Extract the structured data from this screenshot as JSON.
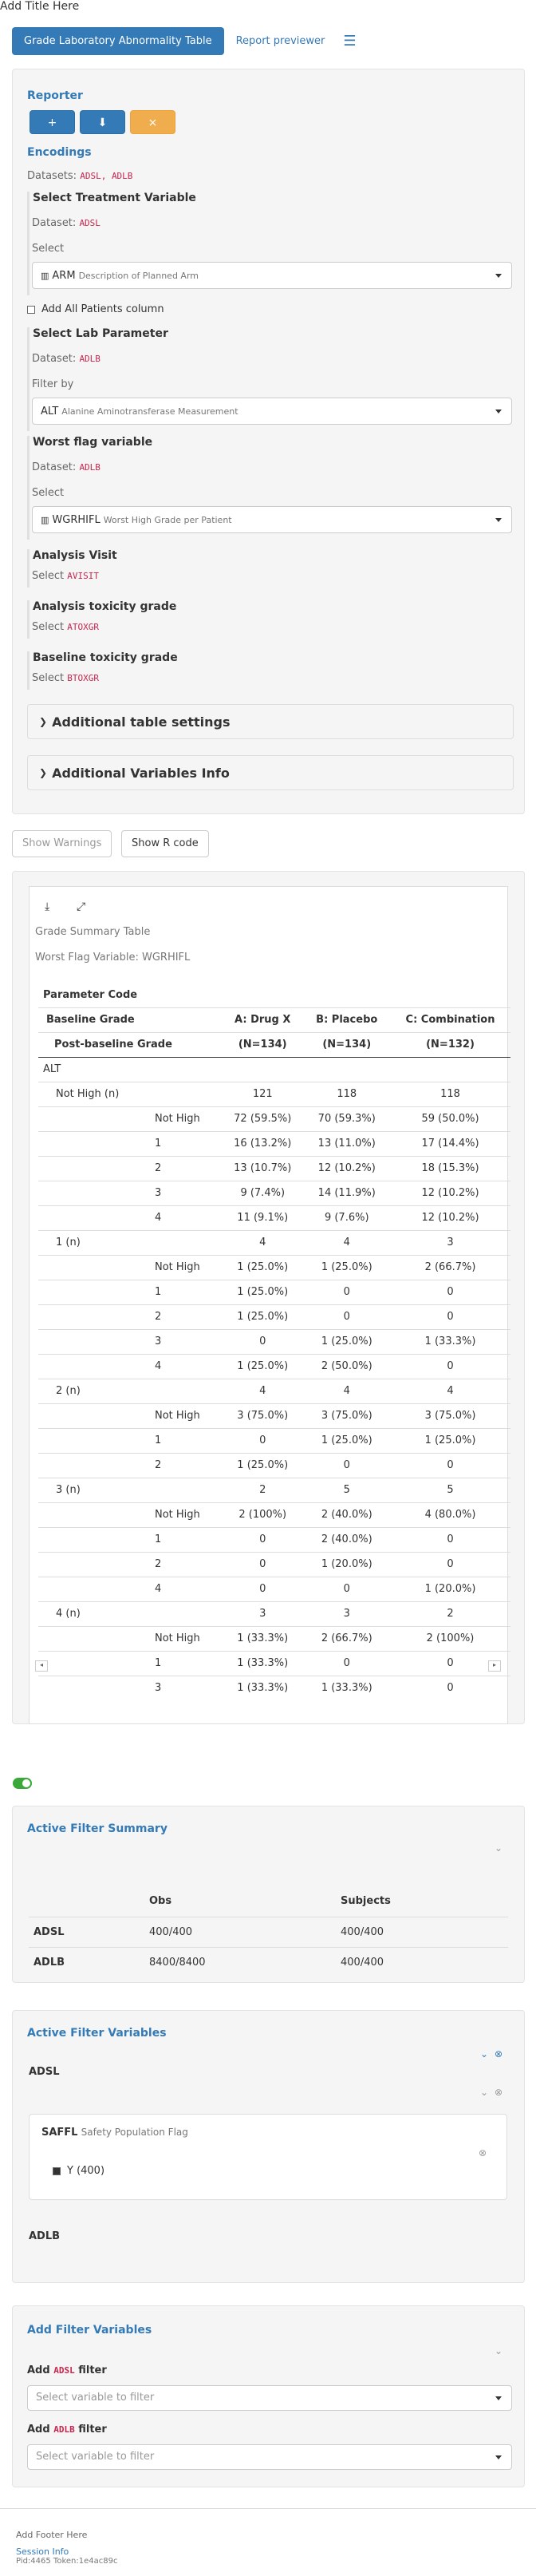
{
  "app": {
    "title": "Add Title Here"
  },
  "nav": {
    "tab_active": "Grade Laboratory Abnormality Table",
    "tab_report": "Report previewer",
    "menu_icon": "hamburger-icon"
  },
  "encodings": {
    "reporter_title": "Reporter",
    "reporter_buttons": [
      "+",
      "⬇",
      "×"
    ],
    "encodings_title": "Encodings",
    "datasets_label": "Datasets:",
    "datasets_value": "ADSL, ADLB",
    "treatment": {
      "title": "Select Treatment Variable",
      "dataset_label": "Dataset:",
      "dataset": "ADSL",
      "select_label": "Select",
      "value": "ARM",
      "desc": "Description of Planned Arm"
    },
    "all_patients_label": "Add All Patients column",
    "lab": {
      "title": "Select Lab Parameter",
      "dataset_label": "Dataset:",
      "dataset": "ADLB",
      "filter_label": "Filter by",
      "value": "ALT",
      "desc": "Alanine Aminotransferase Measurement"
    },
    "worst_flag": {
      "title": "Worst flag variable",
      "dataset_label": "Dataset:",
      "dataset": "ADLB",
      "select_label": "Select",
      "value": "WGRHIFL",
      "desc": "Worst High Grade per Patient"
    },
    "analysis_visit": {
      "title": "Analysis Visit",
      "select_label": "Select",
      "value": "AVISIT"
    },
    "analysis_tox": {
      "title": "Analysis toxicity grade",
      "select_label": "Select",
      "value": "ATOXGR"
    },
    "baseline_tox": {
      "title": "Baseline toxicity grade",
      "select_label": "Select",
      "value": "BTOXGR"
    },
    "additional_settings": "Additional table settings",
    "additional_vars": "Additional Variables Info"
  },
  "actions": {
    "show_warnings": "Show Warnings",
    "show_r_code": "Show R code"
  },
  "output": {
    "title": "Grade Summary Table",
    "subtitle": "Worst Flag Variable: WGRHIFL",
    "header_param": "Parameter Code",
    "header_baseline": "Baseline Grade",
    "header_post": "Post-baseline Grade",
    "col_a": "A: Drug X",
    "col_b": "B: Placebo",
    "col_c": "C: Combination",
    "n_a": "(N=134)",
    "n_b": "(N=134)",
    "n_c": "(N=132)",
    "param": "ALT",
    "rows": [
      {
        "b": "Not High (n)",
        "p": "",
        "a": "121",
        "bb": "118",
        "c": "118",
        "lvl": 1
      },
      {
        "b": "",
        "p": "Not High",
        "a": "72 (59.5%)",
        "bb": "70 (59.3%)",
        "c": "59 (50.0%)",
        "lvl": 2
      },
      {
        "b": "",
        "p": "1",
        "a": "16 (13.2%)",
        "bb": "13 (11.0%)",
        "c": "17 (14.4%)",
        "lvl": 2
      },
      {
        "b": "",
        "p": "2",
        "a": "13 (10.7%)",
        "bb": "12 (10.2%)",
        "c": "18 (15.3%)",
        "lvl": 2
      },
      {
        "b": "",
        "p": "3",
        "a": "9 (7.4%)",
        "bb": "14 (11.9%)",
        "c": "12 (10.2%)",
        "lvl": 2
      },
      {
        "b": "",
        "p": "4",
        "a": "11 (9.1%)",
        "bb": "9 (7.6%)",
        "c": "12 (10.2%)",
        "lvl": 2
      },
      {
        "b": "1 (n)",
        "p": "",
        "a": "4",
        "bb": "4",
        "c": "3",
        "lvl": 1
      },
      {
        "b": "",
        "p": "Not High",
        "a": "1 (25.0%)",
        "bb": "1 (25.0%)",
        "c": "2 (66.7%)",
        "lvl": 2
      },
      {
        "b": "",
        "p": "1",
        "a": "1 (25.0%)",
        "bb": "0",
        "c": "0",
        "lvl": 2
      },
      {
        "b": "",
        "p": "2",
        "a": "1 (25.0%)",
        "bb": "0",
        "c": "0",
        "lvl": 2
      },
      {
        "b": "",
        "p": "3",
        "a": "0",
        "bb": "1 (25.0%)",
        "c": "1 (33.3%)",
        "lvl": 2
      },
      {
        "b": "",
        "p": "4",
        "a": "1 (25.0%)",
        "bb": "2 (50.0%)",
        "c": "0",
        "lvl": 2
      },
      {
        "b": "2 (n)",
        "p": "",
        "a": "4",
        "bb": "4",
        "c": "4",
        "lvl": 1
      },
      {
        "b": "",
        "p": "Not High",
        "a": "3 (75.0%)",
        "bb": "3 (75.0%)",
        "c": "3 (75.0%)",
        "lvl": 2
      },
      {
        "b": "",
        "p": "1",
        "a": "0",
        "bb": "1 (25.0%)",
        "c": "1 (25.0%)",
        "lvl": 2
      },
      {
        "b": "",
        "p": "2",
        "a": "1 (25.0%)",
        "bb": "0",
        "c": "0",
        "lvl": 2
      },
      {
        "b": "3 (n)",
        "p": "",
        "a": "2",
        "bb": "5",
        "c": "5",
        "lvl": 1
      },
      {
        "b": "",
        "p": "Not High",
        "a": "2 (100%)",
        "bb": "2 (40.0%)",
        "c": "4 (80.0%)",
        "lvl": 2
      },
      {
        "b": "",
        "p": "1",
        "a": "0",
        "bb": "2 (40.0%)",
        "c": "0",
        "lvl": 2
      },
      {
        "b": "",
        "p": "2",
        "a": "0",
        "bb": "1 (20.0%)",
        "c": "0",
        "lvl": 2
      },
      {
        "b": "",
        "p": "4",
        "a": "0",
        "bb": "0",
        "c": "1 (20.0%)",
        "lvl": 2
      },
      {
        "b": "4 (n)",
        "p": "",
        "a": "3",
        "bb": "3",
        "c": "2",
        "lvl": 1
      },
      {
        "b": "",
        "p": "Not High",
        "a": "1 (33.3%)",
        "bb": "2 (66.7%)",
        "c": "2 (100%)",
        "lvl": 2
      },
      {
        "b": "",
        "p": "1",
        "a": "1 (33.3%)",
        "bb": "0",
        "c": "0",
        "lvl": 2
      },
      {
        "b": "",
        "p": "3",
        "a": "1 (33.3%)",
        "bb": "1 (33.3%)",
        "c": "0",
        "lvl": 2
      }
    ]
  },
  "filters": {
    "summary_title": "Active Filter Summary",
    "col_obs": "Obs",
    "col_subjects": "Subjects",
    "summary_rows": [
      {
        "name": "ADSL",
        "obs": "400/400",
        "subjects": "400/400"
      },
      {
        "name": "ADLB",
        "obs": "8400/8400",
        "subjects": "400/400"
      }
    ],
    "active_title": "Active Filter Variables",
    "adsl": "ADSL",
    "adlb": "ADLB",
    "saffl_name": "SAFFL",
    "saffl_desc": "Safety Population Flag",
    "saffl_value": "Y (400)",
    "add_title": "Add Filter Variables",
    "add_prefix": "Add",
    "add_suffix": "filter",
    "adsl_code": "ADSL",
    "adlb_code": "ADLB",
    "placeholder": "Select variable to filter"
  },
  "footer": {
    "text": "Add Footer Here",
    "session": "Session Info",
    "pid": "Pid:4465 Token:1e4ac89c"
  }
}
